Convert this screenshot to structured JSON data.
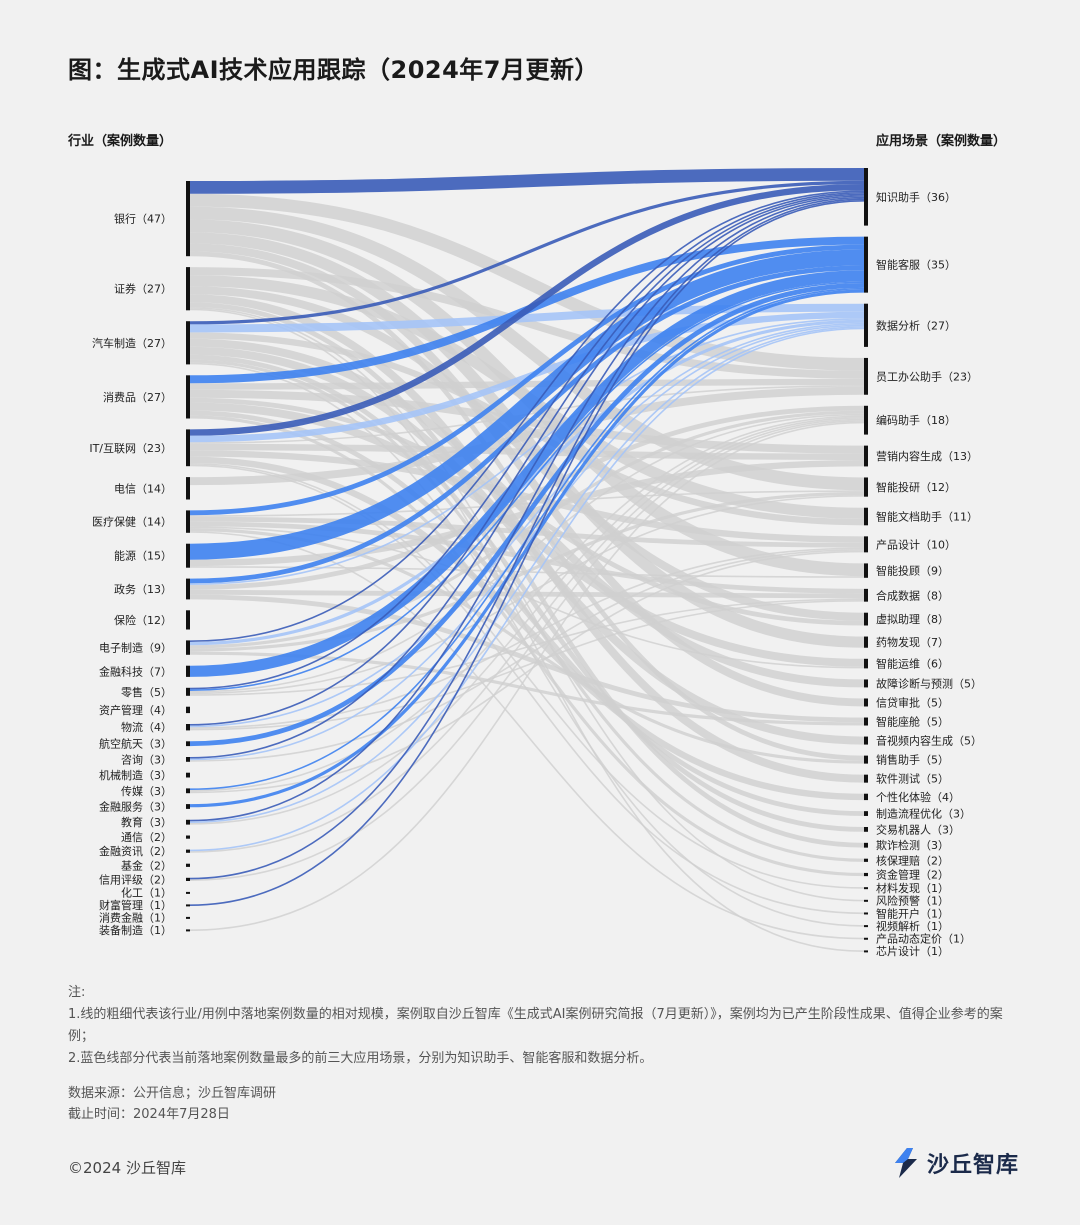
{
  "title": "图：生成式AI技术应用跟踪（2024年7月更新）",
  "left_header": "行业（案例数量）",
  "right_header": "应用场景（案例数量）",
  "notes": {
    "heading": "注:",
    "line1": "1.线的粗细代表该行业/用例中落地案例数量的相对规模，案例取自沙丘智库《生成式AI案例研究简报（7月更新）》，案例均为已产生阶段性成果、值得企业参考的案例；",
    "line2": "2.蓝色线部分代表当前落地案例数量最多的前三大应用场景，分别为知识助手、智能客服和数据分析。"
  },
  "source": {
    "line1": "数据来源：公开信息；沙丘智库调研",
    "line2": "截止时间：2024年7月28日"
  },
  "copyright": "©2024 沙丘智库",
  "logo_text": "沙丘智库",
  "colors": {
    "knowledge": "#3a5cb8",
    "service": "#3e82f0",
    "data": "#a5c4f7",
    "other": "#d0d0d0",
    "node": "#111111"
  },
  "chart_data": {
    "type": "sankey",
    "industries": [
      {
        "name": "银行",
        "count": 47
      },
      {
        "name": "证券",
        "count": 27
      },
      {
        "name": "汽车制造",
        "count": 27
      },
      {
        "name": "消费品",
        "count": 27
      },
      {
        "name": "IT/互联网",
        "count": 23
      },
      {
        "name": "电信",
        "count": 14
      },
      {
        "name": "医疗保健",
        "count": 14
      },
      {
        "name": "能源",
        "count": 15
      },
      {
        "name": "政务",
        "count": 13
      },
      {
        "name": "保险",
        "count": 12
      },
      {
        "name": "电子制造",
        "count": 9
      },
      {
        "name": "金融科技",
        "count": 7
      },
      {
        "name": "零售",
        "count": 5
      },
      {
        "name": "资产管理",
        "count": 4
      },
      {
        "name": "物流",
        "count": 4
      },
      {
        "name": "航空航天",
        "count": 3
      },
      {
        "name": "咨询",
        "count": 3
      },
      {
        "name": "机械制造",
        "count": 3
      },
      {
        "name": "传媒",
        "count": 3
      },
      {
        "name": "金融服务",
        "count": 3
      },
      {
        "name": "教育",
        "count": 3
      },
      {
        "name": "通信",
        "count": 2
      },
      {
        "name": "金融资讯",
        "count": 2
      },
      {
        "name": "基金",
        "count": 2
      },
      {
        "name": "信用评级",
        "count": 2
      },
      {
        "name": "化工",
        "count": 1
      },
      {
        "name": "财富管理",
        "count": 1
      },
      {
        "name": "消费金融",
        "count": 1
      },
      {
        "name": "装备制造",
        "count": 1
      }
    ],
    "scenarios": [
      {
        "name": "知识助手",
        "count": 36
      },
      {
        "name": "智能客服",
        "count": 35
      },
      {
        "name": "数据分析",
        "count": 27
      },
      {
        "name": "员工办公助手",
        "count": 23
      },
      {
        "name": "编码助手",
        "count": 18
      },
      {
        "name": "营销内容生成",
        "count": 13
      },
      {
        "name": "智能投研",
        "count": 12
      },
      {
        "name": "智能文档助手",
        "count": 11
      },
      {
        "name": "产品设计",
        "count": 10
      },
      {
        "name": "智能投顾",
        "count": 9
      },
      {
        "name": "合成数据",
        "count": 8
      },
      {
        "name": "虚拟助理",
        "count": 8
      },
      {
        "name": "药物发现",
        "count": 7
      },
      {
        "name": "智能运维",
        "count": 6
      },
      {
        "name": "故障诊断与预测",
        "count": 5
      },
      {
        "name": "信贷审批",
        "count": 5
      },
      {
        "name": "智能座舱",
        "count": 5
      },
      {
        "name": "音视频内容生成",
        "count": 5
      },
      {
        "name": "销售助手",
        "count": 5
      },
      {
        "name": "软件测试",
        "count": 5
      },
      {
        "name": "个性化体验",
        "count": 4
      },
      {
        "name": "制造流程优化",
        "count": 3
      },
      {
        "name": "交易机器人",
        "count": 3
      },
      {
        "name": "欺诈检测",
        "count": 3
      },
      {
        "name": "核保理赔",
        "count": 2
      },
      {
        "name": "资金管理",
        "count": 2
      },
      {
        "name": "材料发现",
        "count": 1
      },
      {
        "name": "风险预警",
        "count": 1
      },
      {
        "name": "智能开户",
        "count": 1
      },
      {
        "name": "视频解析",
        "count": 1
      },
      {
        "name": "产品动态定价",
        "count": 1
      },
      {
        "name": "芯片设计",
        "count": 1
      }
    ]
  }
}
